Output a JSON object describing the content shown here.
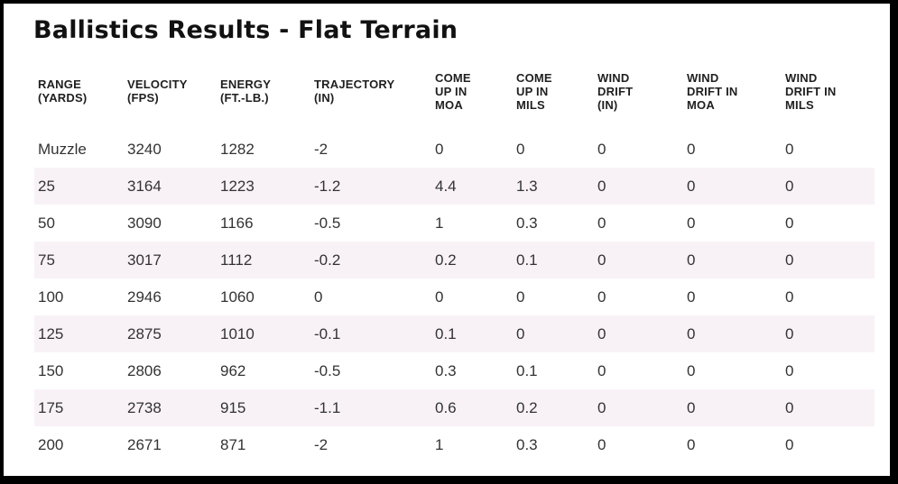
{
  "page": {
    "title": "Ballistics Results - Flat Terrain"
  },
  "colors": {
    "frame": "#000000",
    "background": "#ffffff",
    "row_stripe": "#f8f2f7",
    "title_text": "#111111",
    "header_text": "#1f1f1f",
    "body_text": "#333333"
  },
  "table": {
    "headers": [
      {
        "id": "range",
        "lines": [
          "RANGE",
          "(YARDS)"
        ]
      },
      {
        "id": "velocity",
        "lines": [
          "VELOCITY",
          "(FPS)"
        ]
      },
      {
        "id": "energy",
        "lines": [
          "ENERGY",
          "(FT.-LB.)"
        ]
      },
      {
        "id": "trajectory",
        "lines": [
          "TRAJECTORY",
          "(IN)"
        ]
      },
      {
        "id": "comeup-moa",
        "lines": [
          "COME",
          "UP IN",
          "MOA"
        ]
      },
      {
        "id": "comeup-mils",
        "lines": [
          "COME",
          "UP IN",
          "MILS"
        ]
      },
      {
        "id": "winddrift-in",
        "lines": [
          "WIND",
          "DRIFT",
          "(IN)"
        ]
      },
      {
        "id": "winddrift-moa",
        "lines": [
          "WIND",
          "DRIFT IN",
          "MOA"
        ]
      },
      {
        "id": "winddrift-mils",
        "lines": [
          "WIND",
          "DRIFT IN",
          "MILS"
        ]
      }
    ],
    "rows": [
      {
        "cells": [
          "Muzzle",
          "3240",
          "1282",
          "-2",
          "0",
          "0",
          "0",
          "0",
          "0"
        ]
      },
      {
        "cells": [
          "25",
          "3164",
          "1223",
          "-1.2",
          "4.4",
          "1.3",
          "0",
          "0",
          "0"
        ]
      },
      {
        "cells": [
          "50",
          "3090",
          "1166",
          "-0.5",
          "1",
          "0.3",
          "0",
          "0",
          "0"
        ]
      },
      {
        "cells": [
          "75",
          "3017",
          "1112",
          "-0.2",
          "0.2",
          "0.1",
          "0",
          "0",
          "0"
        ]
      },
      {
        "cells": [
          "100",
          "2946",
          "1060",
          "0",
          "0",
          "0",
          "0",
          "0",
          "0"
        ]
      },
      {
        "cells": [
          "125",
          "2875",
          "1010",
          "-0.1",
          "0.1",
          "0",
          "0",
          "0",
          "0"
        ]
      },
      {
        "cells": [
          "150",
          "2806",
          "962",
          "-0.5",
          "0.3",
          "0.1",
          "0",
          "0",
          "0"
        ]
      },
      {
        "cells": [
          "175",
          "2738",
          "915",
          "-1.1",
          "0.6",
          "0.2",
          "0",
          "0",
          "0"
        ]
      },
      {
        "cells": [
          "200",
          "2671",
          "871",
          "-2",
          "1",
          "0.3",
          "0",
          "0",
          "0"
        ]
      }
    ]
  },
  "chart_data": {
    "type": "table",
    "title": "Ballistics Results - Flat Terrain",
    "columns": [
      "RANGE (YARDS)",
      "VELOCITY (FPS)",
      "ENERGY (FT.-LB.)",
      "TRAJECTORY (IN)",
      "COME UP IN MOA",
      "COME UP IN MILS",
      "WIND DRIFT (IN)",
      "WIND DRIFT IN MOA",
      "WIND DRIFT IN MILS"
    ],
    "rows": [
      [
        "Muzzle",
        3240,
        1282,
        -2,
        0,
        0,
        0,
        0,
        0
      ],
      [
        "25",
        3164,
        1223,
        -1.2,
        4.4,
        1.3,
        0,
        0,
        0
      ],
      [
        "50",
        3090,
        1166,
        -0.5,
        1,
        0.3,
        0,
        0,
        0
      ],
      [
        "75",
        3017,
        1112,
        -0.2,
        0.2,
        0.1,
        0,
        0,
        0
      ],
      [
        "100",
        2946,
        1060,
        0,
        0,
        0,
        0,
        0,
        0
      ],
      [
        "125",
        2875,
        1010,
        -0.1,
        0.1,
        0,
        0,
        0,
        0
      ],
      [
        "150",
        2806,
        962,
        -0.5,
        0.3,
        0.1,
        0,
        0,
        0
      ],
      [
        "175",
        2738,
        915,
        -1.1,
        0.6,
        0.2,
        0,
        0,
        0
      ],
      [
        "200",
        2671,
        871,
        -2,
        1,
        0.3,
        0,
        0,
        0
      ]
    ],
    "row_striping": "alternate rows shaded #f8f2f7 starting with second row",
    "grid": false,
    "legend": false
  }
}
